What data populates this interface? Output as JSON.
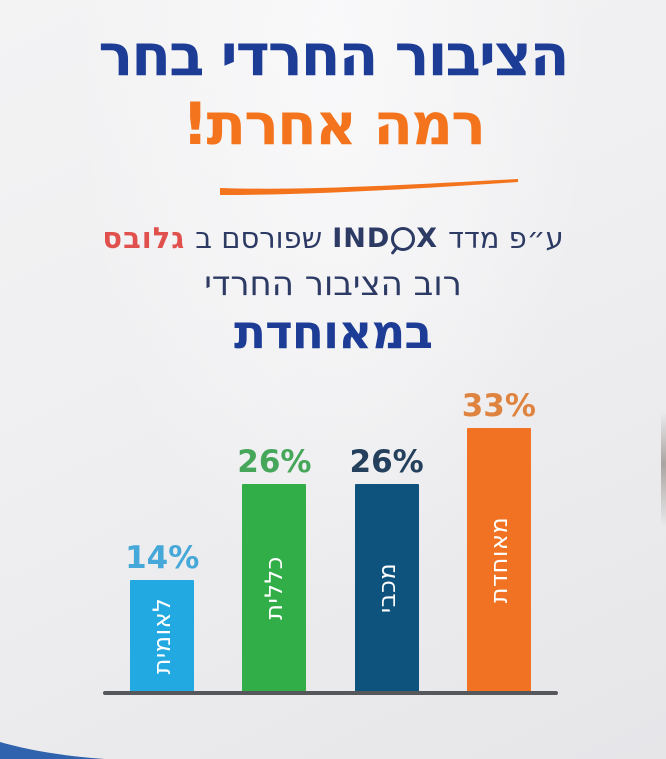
{
  "header": {
    "title_line1": "הציבור החרדי בחר",
    "title_line2": "רמה אחרת!"
  },
  "subtitle": {
    "prefix": "ע״פ מדד",
    "indox_part1": "IND",
    "indox_part2": "X",
    "published": "שפורסם ב",
    "globes": "גלובס",
    "line2": "רוב הציבור החרדי",
    "line3": "במאוחדת"
  },
  "colors": {
    "title_blue": "#1d3c96",
    "accent_orange": "#f4741d",
    "subtitle_navy": "#2c3a64",
    "globes_red": "#e0514d",
    "bottom_curve_blue": "#2f63ae"
  },
  "chart_data": {
    "type": "bar",
    "categories": [
      "לאומית",
      "כללית",
      "מכבי",
      "מאוחדת"
    ],
    "values": [
      14,
      26,
      26,
      33
    ],
    "value_labels": [
      "14%",
      "26%",
      "26%",
      "33%"
    ],
    "bar_colors": [
      "#22a9e1",
      "#31ae48",
      "#0e527e",
      "#f07222"
    ],
    "value_label_colors": [
      "#45a8d8",
      "#46a65a",
      "#24405c",
      "#de8440"
    ],
    "bar_label_color": "#ffffff",
    "baseline_color": "#56575a",
    "title": "",
    "xlabel": "",
    "ylabel": "",
    "ylim": [
      0,
      35
    ],
    "grid": false,
    "legend": false
  }
}
